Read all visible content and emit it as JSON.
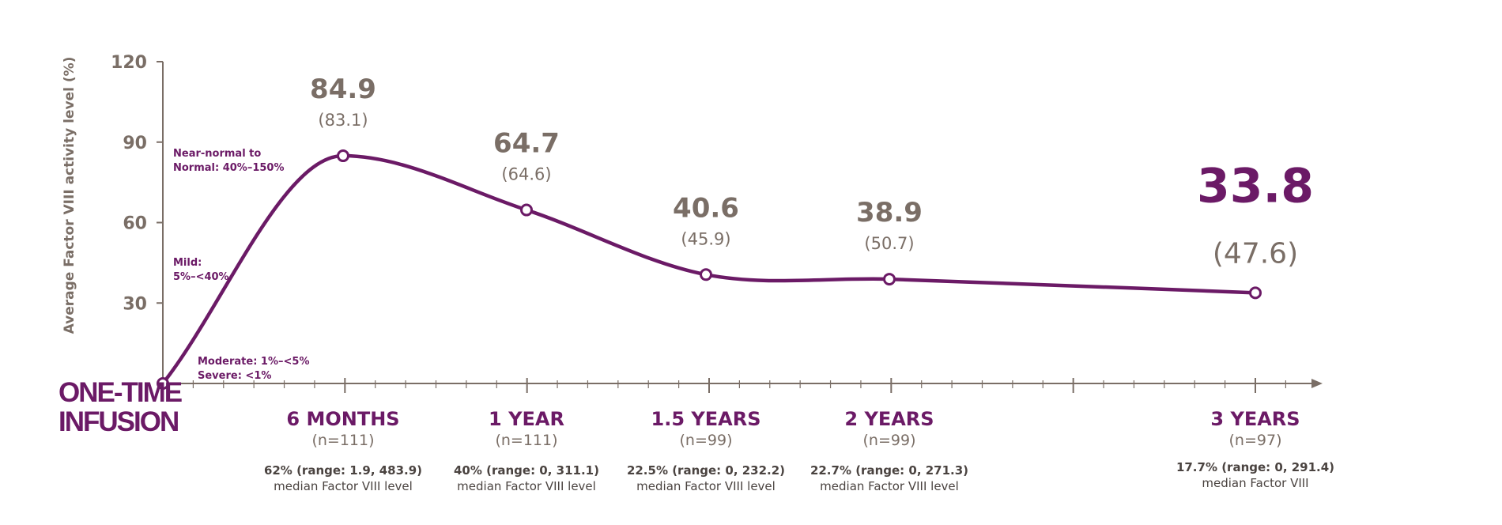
{
  "chart_data": {
    "type": "line",
    "ylabel": "Average Factor VIII activity level (%)",
    "ylim": [
      0,
      120
    ],
    "yticks": [
      30,
      60,
      90,
      120
    ],
    "origin_label": [
      "ONE-TIME",
      "INFUSION"
    ],
    "zones": [
      {
        "lines": [
          "Near-normal to",
          "Normal: 40%–150%"
        ]
      },
      {
        "lines": [
          "Mild:",
          "5%–<40%"
        ]
      },
      {
        "lines": [
          "Moderate: 1%–<5%",
          "Severe: <1%"
        ]
      }
    ],
    "points": [
      {
        "x": 0,
        "y": 0
      },
      {
        "x": 6,
        "y": 84.9,
        "label": "84.9",
        "sublabel": "(83.1)",
        "xlabel": "6 MONTHS",
        "n": "(n=111)",
        "median_line1": "62% (range: 1.9, 483.9)",
        "median_line2": "median Factor VIII level"
      },
      {
        "x": 12,
        "y": 64.7,
        "label": "64.7",
        "sublabel": "(64.6)",
        "xlabel": "1 YEAR",
        "n": "(n=111)",
        "median_line1": "40% (range: 0, 311.1)",
        "median_line2": "median Factor VIII level"
      },
      {
        "x": 18,
        "y": 40.6,
        "label": "40.6",
        "sublabel": "(45.9)",
        "xlabel": "1.5 YEARS",
        "n": "(n=99)",
        "median_line1": "22.5% (range: 0, 232.2)",
        "median_line2": "median Factor VIII level"
      },
      {
        "x": 24,
        "y": 38.9,
        "label": "38.9",
        "sublabel": "(50.7)",
        "xlabel": "2 YEARS",
        "n": "(n=99)",
        "median_line1": "22.7% (range: 0, 271.3)",
        "median_line2": "median Factor VIII level"
      },
      {
        "x": 36,
        "y": 33.8,
        "label": "33.8",
        "sublabel": "(47.6)",
        "xlabel": "3 YEARS",
        "n": "(n=97)",
        "median_line1": "17.7% (range: 0, 291.4)",
        "median_line2": "median Factor VIII",
        "emphasis": true
      }
    ],
    "colors": {
      "line": "#6b1a66",
      "axis": "#7a6e66",
      "text": "#7a6e66",
      "accent": "#6b1a66"
    },
    "grid": false
  }
}
